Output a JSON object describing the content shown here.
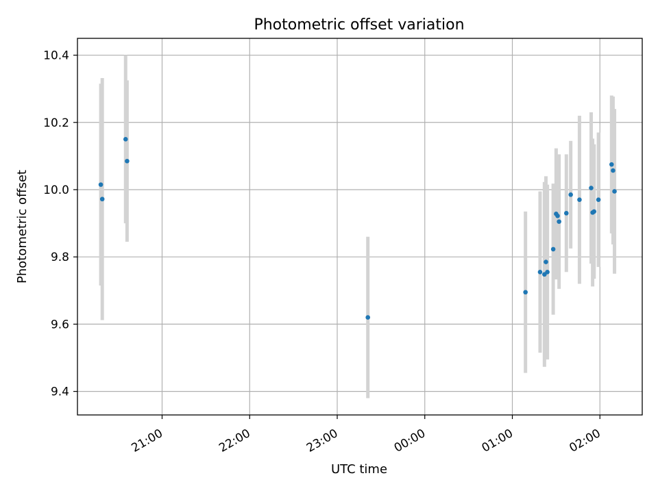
{
  "chart_data": {
    "type": "scatter",
    "title": "Photometric offset variation",
    "xlabel": "UTC time",
    "ylabel": "Photometric offset",
    "x_unit": "hours, UTC",
    "xlim": [
      "20:02",
      "02:29"
    ],
    "ylim": [
      9.33,
      10.45
    ],
    "grid": true,
    "x_ticks": [
      "21:00",
      "22:00",
      "23:00",
      "00:00",
      "01:00",
      "02:00"
    ],
    "y_ticks": [
      9.4,
      9.6,
      9.8,
      10.0,
      10.2,
      10.4
    ],
    "colors": {
      "point": "#1f77b4",
      "errorbar": "#d3d3d3",
      "grid": "#b0b0b0"
    },
    "points": [
      {
        "x": "20:18",
        "y": 10.015,
        "err": 0.3
      },
      {
        "x": "20:19",
        "y": 9.972,
        "err": 0.36
      },
      {
        "x": "20:35",
        "y": 10.15,
        "err": 0.25
      },
      {
        "x": "20:36",
        "y": 10.085,
        "err": 0.24
      },
      {
        "x": "23:21",
        "y": 9.62,
        "err": 0.24
      },
      {
        "x": "01:09",
        "y": 9.695,
        "err": 0.24
      },
      {
        "x": "01:19",
        "y": 9.755,
        "err": 0.24
      },
      {
        "x": "01:22",
        "y": 9.748,
        "err": 0.275
      },
      {
        "x": "01:23",
        "y": 9.785,
        "err": 0.255
      },
      {
        "x": "01:24",
        "y": 9.755,
        "err": 0.26
      },
      {
        "x": "01:28",
        "y": 9.823,
        "err": 0.195
      },
      {
        "x": "01:30",
        "y": 9.928,
        "err": 0.195
      },
      {
        "x": "01:31",
        "y": 9.922,
        "err": 0.18
      },
      {
        "x": "01:32",
        "y": 9.905,
        "err": 0.2
      },
      {
        "x": "01:37",
        "y": 9.93,
        "err": 0.175
      },
      {
        "x": "01:40",
        "y": 9.985,
        "err": 0.16
      },
      {
        "x": "01:46",
        "y": 9.97,
        "err": 0.25
      },
      {
        "x": "01:54",
        "y": 10.005,
        "err": 0.225
      },
      {
        "x": "01:55",
        "y": 9.932,
        "err": 0.22
      },
      {
        "x": "01:56",
        "y": 9.935,
        "err": 0.2
      },
      {
        "x": "01:59",
        "y": 9.97,
        "err": 0.2
      },
      {
        "x": "02:08",
        "y": 10.075,
        "err": 0.205
      },
      {
        "x": "02:09",
        "y": 10.057,
        "err": 0.22
      },
      {
        "x": "02:10",
        "y": 9.995,
        "err": 0.245
      }
    ]
  }
}
